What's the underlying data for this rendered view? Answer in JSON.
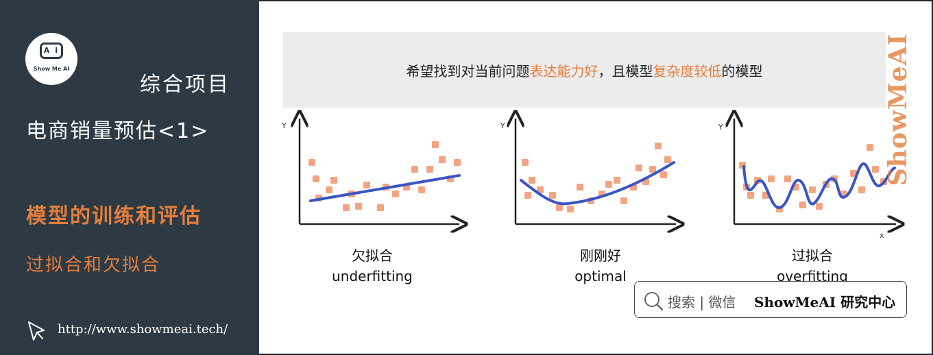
{
  "sidebar": {
    "logo_text": "Show Me AI",
    "logo_eyes": "A I",
    "project": "综合项目",
    "title": "电商销量预估<1>",
    "section": "模型的训练和评估",
    "subsection": "过拟合和欠拟合",
    "url": "http://www.showmeai.tech/"
  },
  "banner": {
    "text_1": "希望找到对当前问题",
    "highlight_1": "表达能力好",
    "text_2": "，且模型",
    "highlight_2": "复杂度较低",
    "text_3": "的模型"
  },
  "diagrams": [
    {
      "caption_cn": "欠拟合",
      "caption_en": "underfitting",
      "y_label": "Y",
      "x_label": ""
    },
    {
      "caption_cn": "刚刚好",
      "caption_en": "optimal",
      "y_label": "Y",
      "x_label": ""
    },
    {
      "caption_cn": "过拟合",
      "caption_en": "overfitting",
      "y_label": "Y",
      "x_label": "x"
    }
  ],
  "watermark": "ShowMeAI",
  "search": {
    "hint": "搜索 | 微信",
    "brand_en": "ShowMeAI",
    "brand_cn": " 研究中心"
  },
  "colors": {
    "sidebar_bg": "#2e3a43",
    "accent": "#e37e3c",
    "fit_line": "#3a55c4",
    "data_point": "#f2a582"
  }
}
